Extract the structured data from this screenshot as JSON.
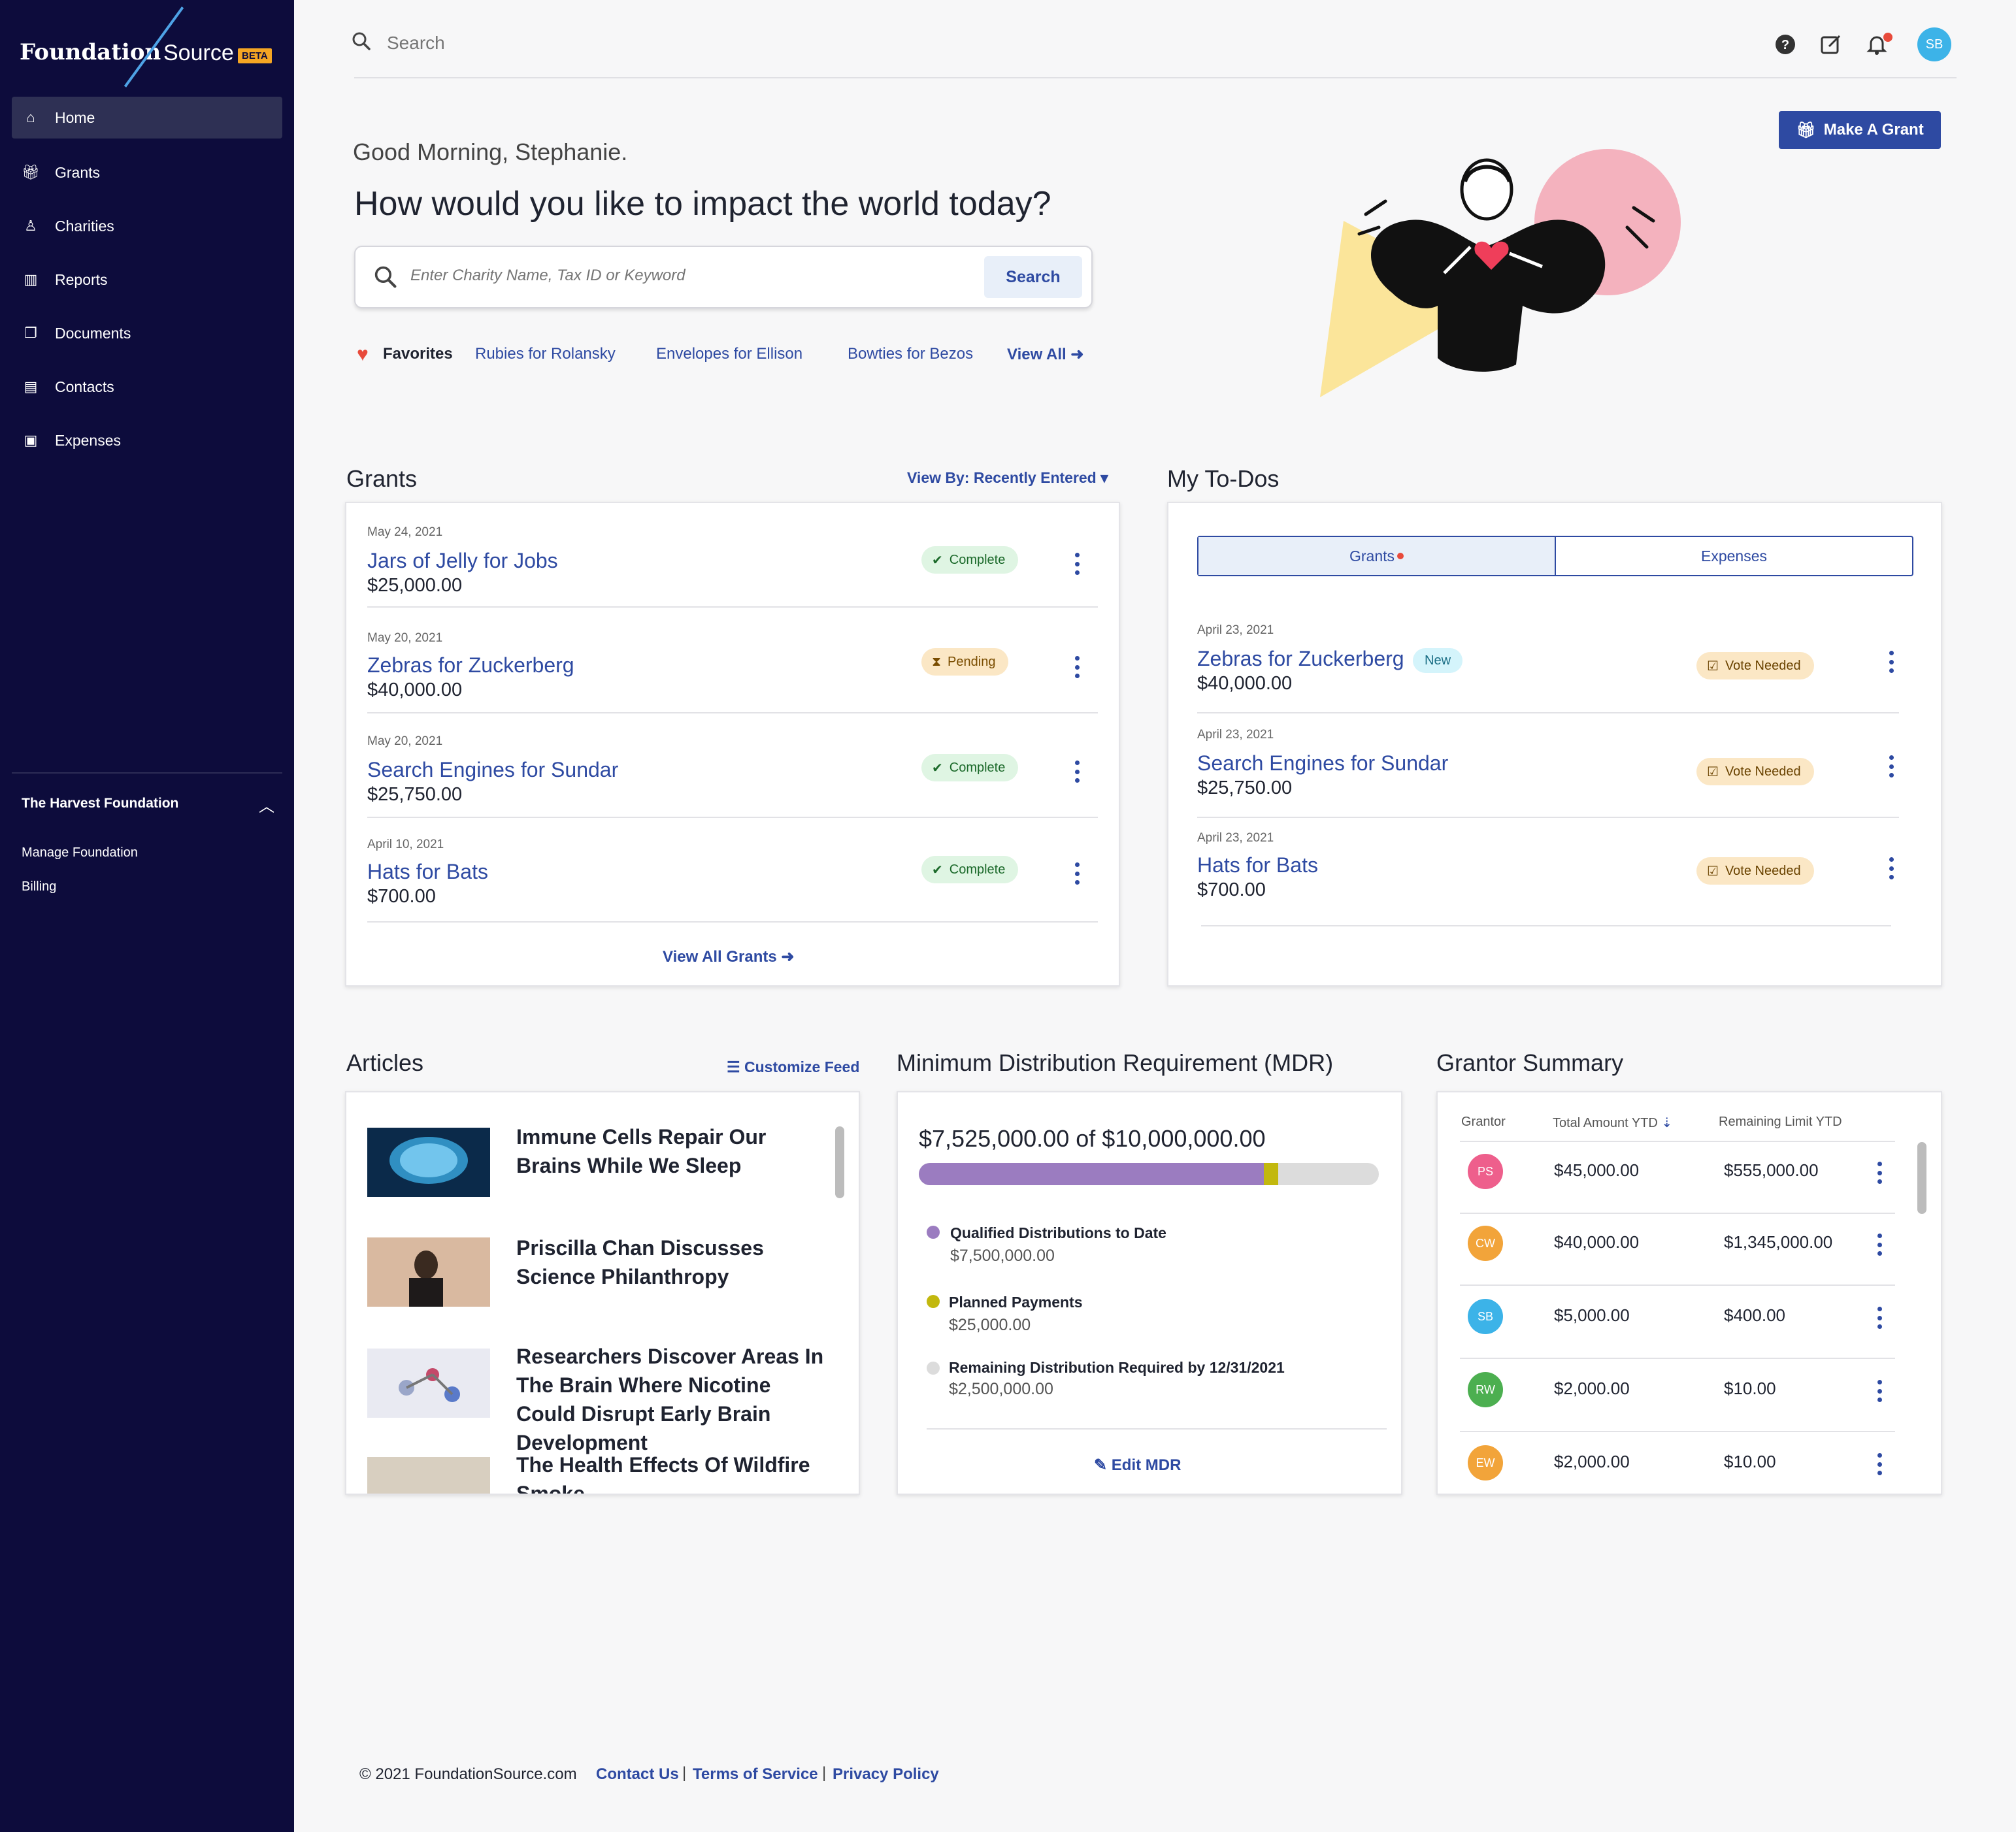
{
  "brand": {
    "name_part1": "Foundation",
    "name_part2": "Source",
    "badge": "BETA"
  },
  "sidebar": {
    "items": [
      {
        "label": "Home",
        "icon": "home-icon"
      },
      {
        "label": "Grants",
        "icon": "gift-icon"
      },
      {
        "label": "Charities",
        "icon": "ribbon-icon"
      },
      {
        "label": "Reports",
        "icon": "bar-chart-icon"
      },
      {
        "label": "Documents",
        "icon": "documents-icon"
      },
      {
        "label": "Contacts",
        "icon": "contact-card-icon"
      },
      {
        "label": "Expenses",
        "icon": "money-icon"
      }
    ],
    "foundation_name": "The Harvest Foundation",
    "sub_links": [
      "Manage Foundation",
      "Billing"
    ]
  },
  "topbar": {
    "search_placeholder": "Search",
    "avatar_initials": "SB"
  },
  "make_grant_label": "Make A Grant",
  "hero": {
    "greeting": "Good Morning, Stephanie.",
    "headline": "How would you like to impact the world today?",
    "search_placeholder": "Enter Charity Name, Tax ID or Keyword",
    "search_button": "Search",
    "favorites_label": "Favorites",
    "favorites": [
      "Rubies for Rolansky",
      "Envelopes for Ellison",
      "Bowties for Bezos"
    ],
    "view_all": "View All"
  },
  "grants": {
    "title": "Grants",
    "view_by": "View By: Recently Entered",
    "rows": [
      {
        "date": "May 24, 2021",
        "name": "Jars of Jelly for Jobs",
        "amount": "$25,000.00",
        "status": "Complete"
      },
      {
        "date": "May 20, 2021",
        "name": "Zebras for Zuckerberg",
        "amount": "$40,000.00",
        "status": "Pending"
      },
      {
        "date": "May 20, 2021",
        "name": "Search Engines for Sundar",
        "amount": "$25,750.00",
        "status": "Complete"
      },
      {
        "date": "April 10, 2021",
        "name": "Hats for Bats",
        "amount": "$700.00",
        "status": "Complete"
      }
    ],
    "view_all": "View All Grants"
  },
  "todos": {
    "title": "My To-Dos",
    "tabs": [
      "Grants",
      "Expenses"
    ],
    "rows": [
      {
        "date": "April 23, 2021",
        "name": "Zebras for Zuckerberg",
        "amount": "$40,000.00",
        "status": "Vote Needed",
        "badge": "New"
      },
      {
        "date": "April 23, 2021",
        "name": "Search Engines for Sundar",
        "amount": "$25,750.00",
        "status": "Vote Needed"
      },
      {
        "date": "April 23, 2021",
        "name": "Hats for Bats",
        "amount": "$700.00",
        "status": "Vote Needed"
      }
    ]
  },
  "articles": {
    "title": "Articles",
    "customize": "Customize Feed",
    "items": [
      {
        "title": "Immune Cells Repair Our Brains While We Sleep"
      },
      {
        "title": "Priscilla Chan Discusses Science Philanthropy"
      },
      {
        "title": "Researchers Discover Areas In The Brain Where Nicotine Could Disrupt Early Brain Development"
      },
      {
        "title": "The Health Effects Of Wildfire Smoke"
      }
    ]
  },
  "mdr": {
    "title": "Minimum Distribution Requirement (MDR)",
    "total_text": "$7,525,000.00 of $10,000,000.00",
    "qualified_fraction": 0.75,
    "planned_fraction": 0.0025,
    "items": [
      {
        "label": "Qualified Distributions to Date",
        "value": "$7,500,000.00",
        "color": "#9b7cc0"
      },
      {
        "label": "Planned Payments",
        "value": "$25,000.00",
        "color": "#c2b80e"
      },
      {
        "label": "Remaining Distribution Required by 12/31/2021",
        "value": "$2,500,000.00",
        "color": "#dcdcdc"
      }
    ],
    "edit": "Edit MDR"
  },
  "grantor": {
    "title": "Grantor Summary",
    "headers": [
      "Grantor",
      "Total Amount YTD",
      "Remaining Limit YTD"
    ],
    "rows": [
      {
        "initials": "PS",
        "color": "#ee5f8c",
        "total": "$45,000.00",
        "remaining": "$555,000.00"
      },
      {
        "initials": "CW",
        "color": "#f2a43a",
        "total": "$40,000.00",
        "remaining": "$1,345,000.00"
      },
      {
        "initials": "SB",
        "color": "#3cb3e8",
        "total": "$5,000.00",
        "remaining": "$400.00"
      },
      {
        "initials": "RW",
        "color": "#4caf50",
        "total": "$2,000.00",
        "remaining": "$10.00"
      },
      {
        "initials": "EW",
        "color": "#f2a43a",
        "total": "$2,000.00",
        "remaining": "$10.00"
      }
    ]
  },
  "footer": {
    "copyright": "© 2021 FoundationSource.com",
    "links": [
      "Contact Us",
      "Terms of Service",
      "Privacy Policy"
    ]
  }
}
